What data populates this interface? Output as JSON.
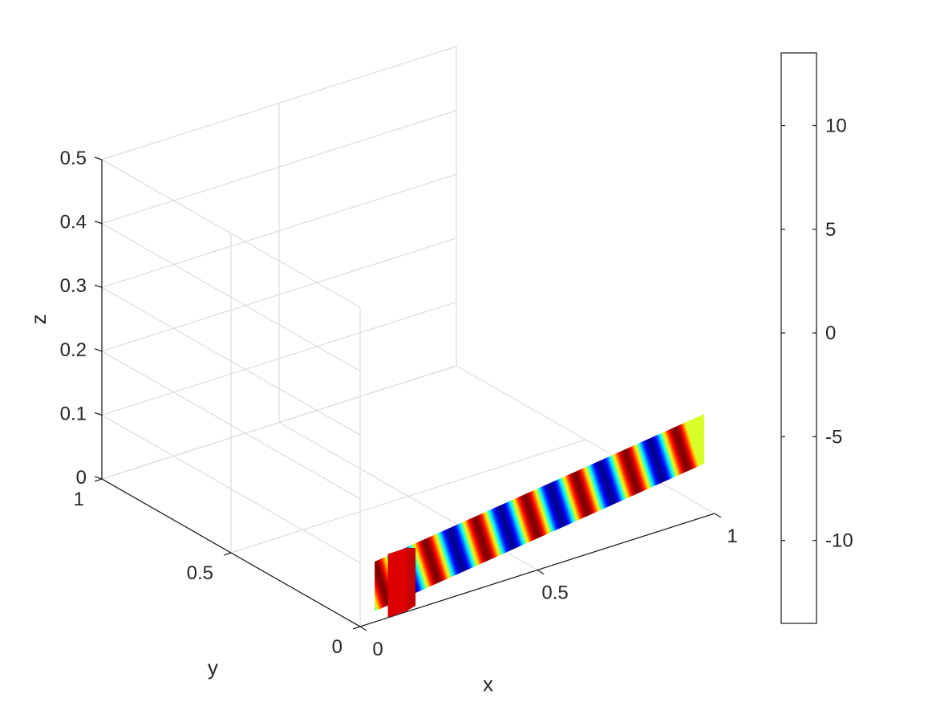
{
  "chart_data": {
    "type": "surface3d",
    "title": "",
    "xlabel": "x",
    "ylabel": "y",
    "zlabel": "z",
    "xlim": [
      0,
      1
    ],
    "ylim": [
      0,
      1
    ],
    "zlim": [
      0,
      0.5
    ],
    "x_ticks": [
      {
        "value": 0,
        "label": "0"
      },
      {
        "value": 0.5,
        "label": "0.5"
      },
      {
        "value": 1,
        "label": "1"
      }
    ],
    "y_ticks": [
      {
        "value": 0,
        "label": "0"
      },
      {
        "value": 0.5,
        "label": "0.5"
      },
      {
        "value": 1,
        "label": "1"
      }
    ],
    "z_ticks": [
      {
        "value": 0,
        "label": "0"
      },
      {
        "value": 0.1,
        "label": "0.1"
      },
      {
        "value": 0.2,
        "label": "0.2"
      },
      {
        "value": 0.3,
        "label": "0.3"
      },
      {
        "value": 0.4,
        "label": "0.4"
      },
      {
        "value": 0.5,
        "label": "0.5"
      }
    ],
    "grid": true,
    "colormap": "jet",
    "colorbar": {
      "location": "right",
      "range": [
        -14,
        13.5
      ],
      "ticks": [
        {
          "value": 10,
          "label": "10"
        },
        {
          "value": 5,
          "label": "5"
        },
        {
          "value": 0,
          "label": "0"
        },
        {
          "value": -5,
          "label": "-5"
        },
        {
          "value": -10,
          "label": "-10"
        }
      ]
    },
    "slab": {
      "x_range": [
        0.05,
        1
      ],
      "y_value": 0,
      "z_range": [
        0,
        0.04
      ],
      "field": "oscillating along x",
      "amplitude": 13.5,
      "cycles": 6.5
    },
    "small_slab": {
      "x_range": [
        0.05,
        0.1
      ],
      "y_range": [
        0,
        0.05
      ],
      "z_range": [
        0,
        0.04
      ],
      "value": 11
    }
  }
}
